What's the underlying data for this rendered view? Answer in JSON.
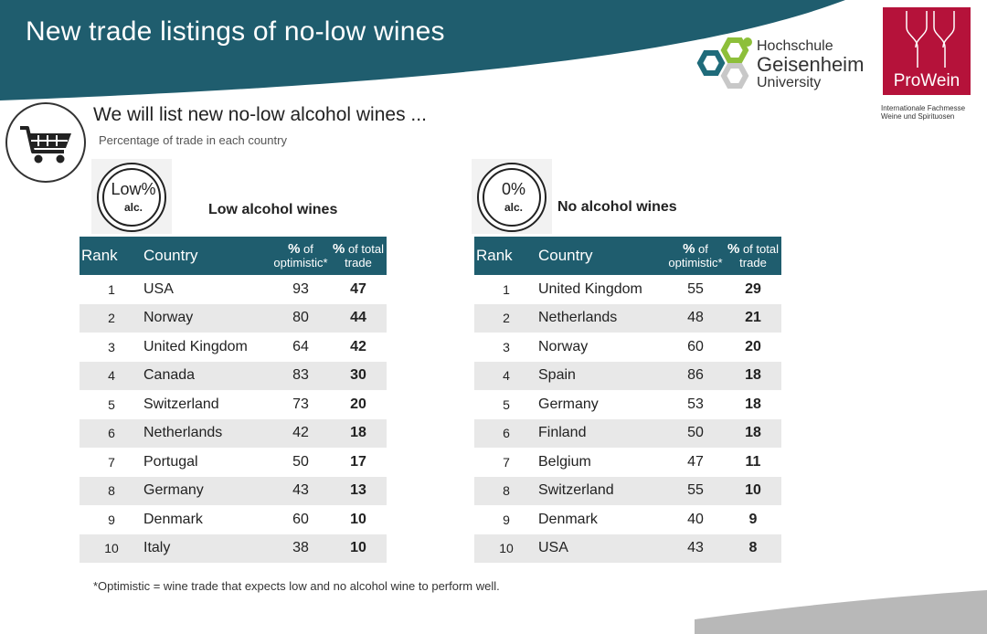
{
  "slide": {
    "title": "New trade listings of no-low wines",
    "heading": "We will list new no-low alcohol wines ...",
    "subheading": "Percentage of trade in each country",
    "footnote": "*Optimistic = wine trade that expects low and no alcohol wine to perform well."
  },
  "logos": {
    "hgu_line1": "Hochschule",
    "hgu_line2": "Geisenheim",
    "hgu_line3": "University",
    "prowein_name": "ProWein",
    "prowein_sub_line1": "Internationale Fachmesse",
    "prowein_sub_line2": "Weine und Spirituosen"
  },
  "colors": {
    "banner": "#1f5d6e",
    "table_header": "#1f5d6e",
    "prowein": "#b5123a",
    "row_shade": "#e8e8e8"
  },
  "icons": {
    "cart": "shopping-cart-icon",
    "low_badge": "low-alcohol-icon",
    "no_badge": "no-alcohol-icon"
  },
  "low_table": {
    "title": "Low alcohol wines",
    "badge_big": "Low%",
    "badge_small": "alc.",
    "header_rank": "Rank",
    "header_country": "Country",
    "header_opt_pct": "%",
    "header_opt_rest": " of",
    "header_opt_line2": "optimistic*",
    "header_share_pct": "%",
    "header_share_rest": " of total",
    "header_share_line2": "trade",
    "rows": [
      {
        "rank": "1",
        "country": "USA",
        "optimistic": "93",
        "share": "47"
      },
      {
        "rank": "2",
        "country": "Norway",
        "optimistic": "80",
        "share": "44"
      },
      {
        "rank": "3",
        "country": "United Kingdom",
        "optimistic": "64",
        "share": "42"
      },
      {
        "rank": "4",
        "country": "Canada",
        "optimistic": "83",
        "share": "30"
      },
      {
        "rank": "5",
        "country": "Switzerland",
        "optimistic": "73",
        "share": "20"
      },
      {
        "rank": "6",
        "country": "Netherlands",
        "optimistic": "42",
        "share": "18"
      },
      {
        "rank": "7",
        "country": "Portugal",
        "optimistic": "50",
        "share": "17"
      },
      {
        "rank": "8",
        "country": "Germany",
        "optimistic": "43",
        "share": "13"
      },
      {
        "rank": "9",
        "country": "Denmark",
        "optimistic": "60",
        "share": "10"
      },
      {
        "rank": "10",
        "country": "Italy",
        "optimistic": "38",
        "share": "10"
      }
    ]
  },
  "no_table": {
    "title": "No alcohol wines",
    "badge_big": "0%",
    "badge_small": "alc.",
    "header_rank": "Rank",
    "header_country": "Country",
    "header_opt_pct": "%",
    "header_opt_rest": " of",
    "header_opt_line2": "optimistic*",
    "header_share_pct": "%",
    "header_share_rest": " of total",
    "header_share_line2": "trade",
    "rows": [
      {
        "rank": "1",
        "country": "United Kingdom",
        "optimistic": "55",
        "share": "29"
      },
      {
        "rank": "2",
        "country": "Netherlands",
        "optimistic": "48",
        "share": "21"
      },
      {
        "rank": "3",
        "country": "Norway",
        "optimistic": "60",
        "share": "20"
      },
      {
        "rank": "4",
        "country": "Spain",
        "optimistic": "86",
        "share": "18"
      },
      {
        "rank": "5",
        "country": "Germany",
        "optimistic": "53",
        "share": "18"
      },
      {
        "rank": "6",
        "country": "Finland",
        "optimistic": "50",
        "share": "18"
      },
      {
        "rank": "7",
        "country": "Belgium",
        "optimistic": "47",
        "share": "11"
      },
      {
        "rank": "8",
        "country": "Switzerland",
        "optimistic": "55",
        "share": "10"
      },
      {
        "rank": "9",
        "country": "Denmark",
        "optimistic": "40",
        "share": "9"
      },
      {
        "rank": "10",
        "country": "USA",
        "optimistic": "43",
        "share": "8"
      }
    ]
  }
}
